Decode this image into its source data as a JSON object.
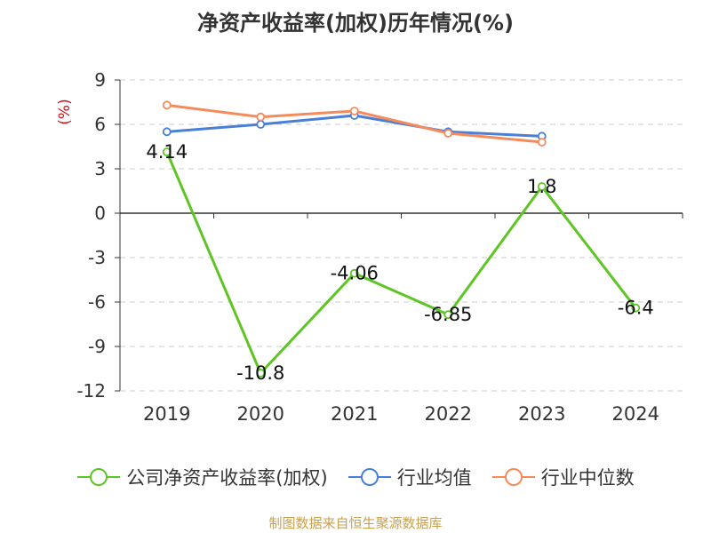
{
  "chart_data": {
    "type": "line",
    "title": "净资产收益率(加权)历年情况(%)",
    "ylabel": "(%)",
    "xlabel": "",
    "categories": [
      "2019",
      "2020",
      "2021",
      "2022",
      "2023",
      "2024"
    ],
    "ylim": [
      -12,
      9
    ],
    "yticks": [
      9,
      6,
      3,
      0,
      -3,
      -6,
      -9,
      -12
    ],
    "grid": true,
    "legend_position": "bottom",
    "series": [
      {
        "name": "公司净资产收益率(加权)",
        "color": "#5ec524",
        "values": [
          4.14,
          -10.8,
          -4.06,
          -6.85,
          1.8,
          -6.4
        ],
        "labels": [
          "4.14",
          "-10.8",
          "-4.06",
          "-6.85",
          "1.8",
          "-6.4"
        ],
        "show_labels": true
      },
      {
        "name": "行业均值",
        "color": "#4a7fd8",
        "values": [
          5.5,
          6.0,
          6.6,
          5.5,
          5.2,
          null
        ],
        "show_labels": false
      },
      {
        "name": "行业中位数",
        "color": "#f58b5c",
        "values": [
          7.3,
          6.5,
          6.9,
          5.4,
          4.8,
          null
        ],
        "show_labels": false
      }
    ],
    "source": "制图数据来自恒生聚源数据库"
  }
}
